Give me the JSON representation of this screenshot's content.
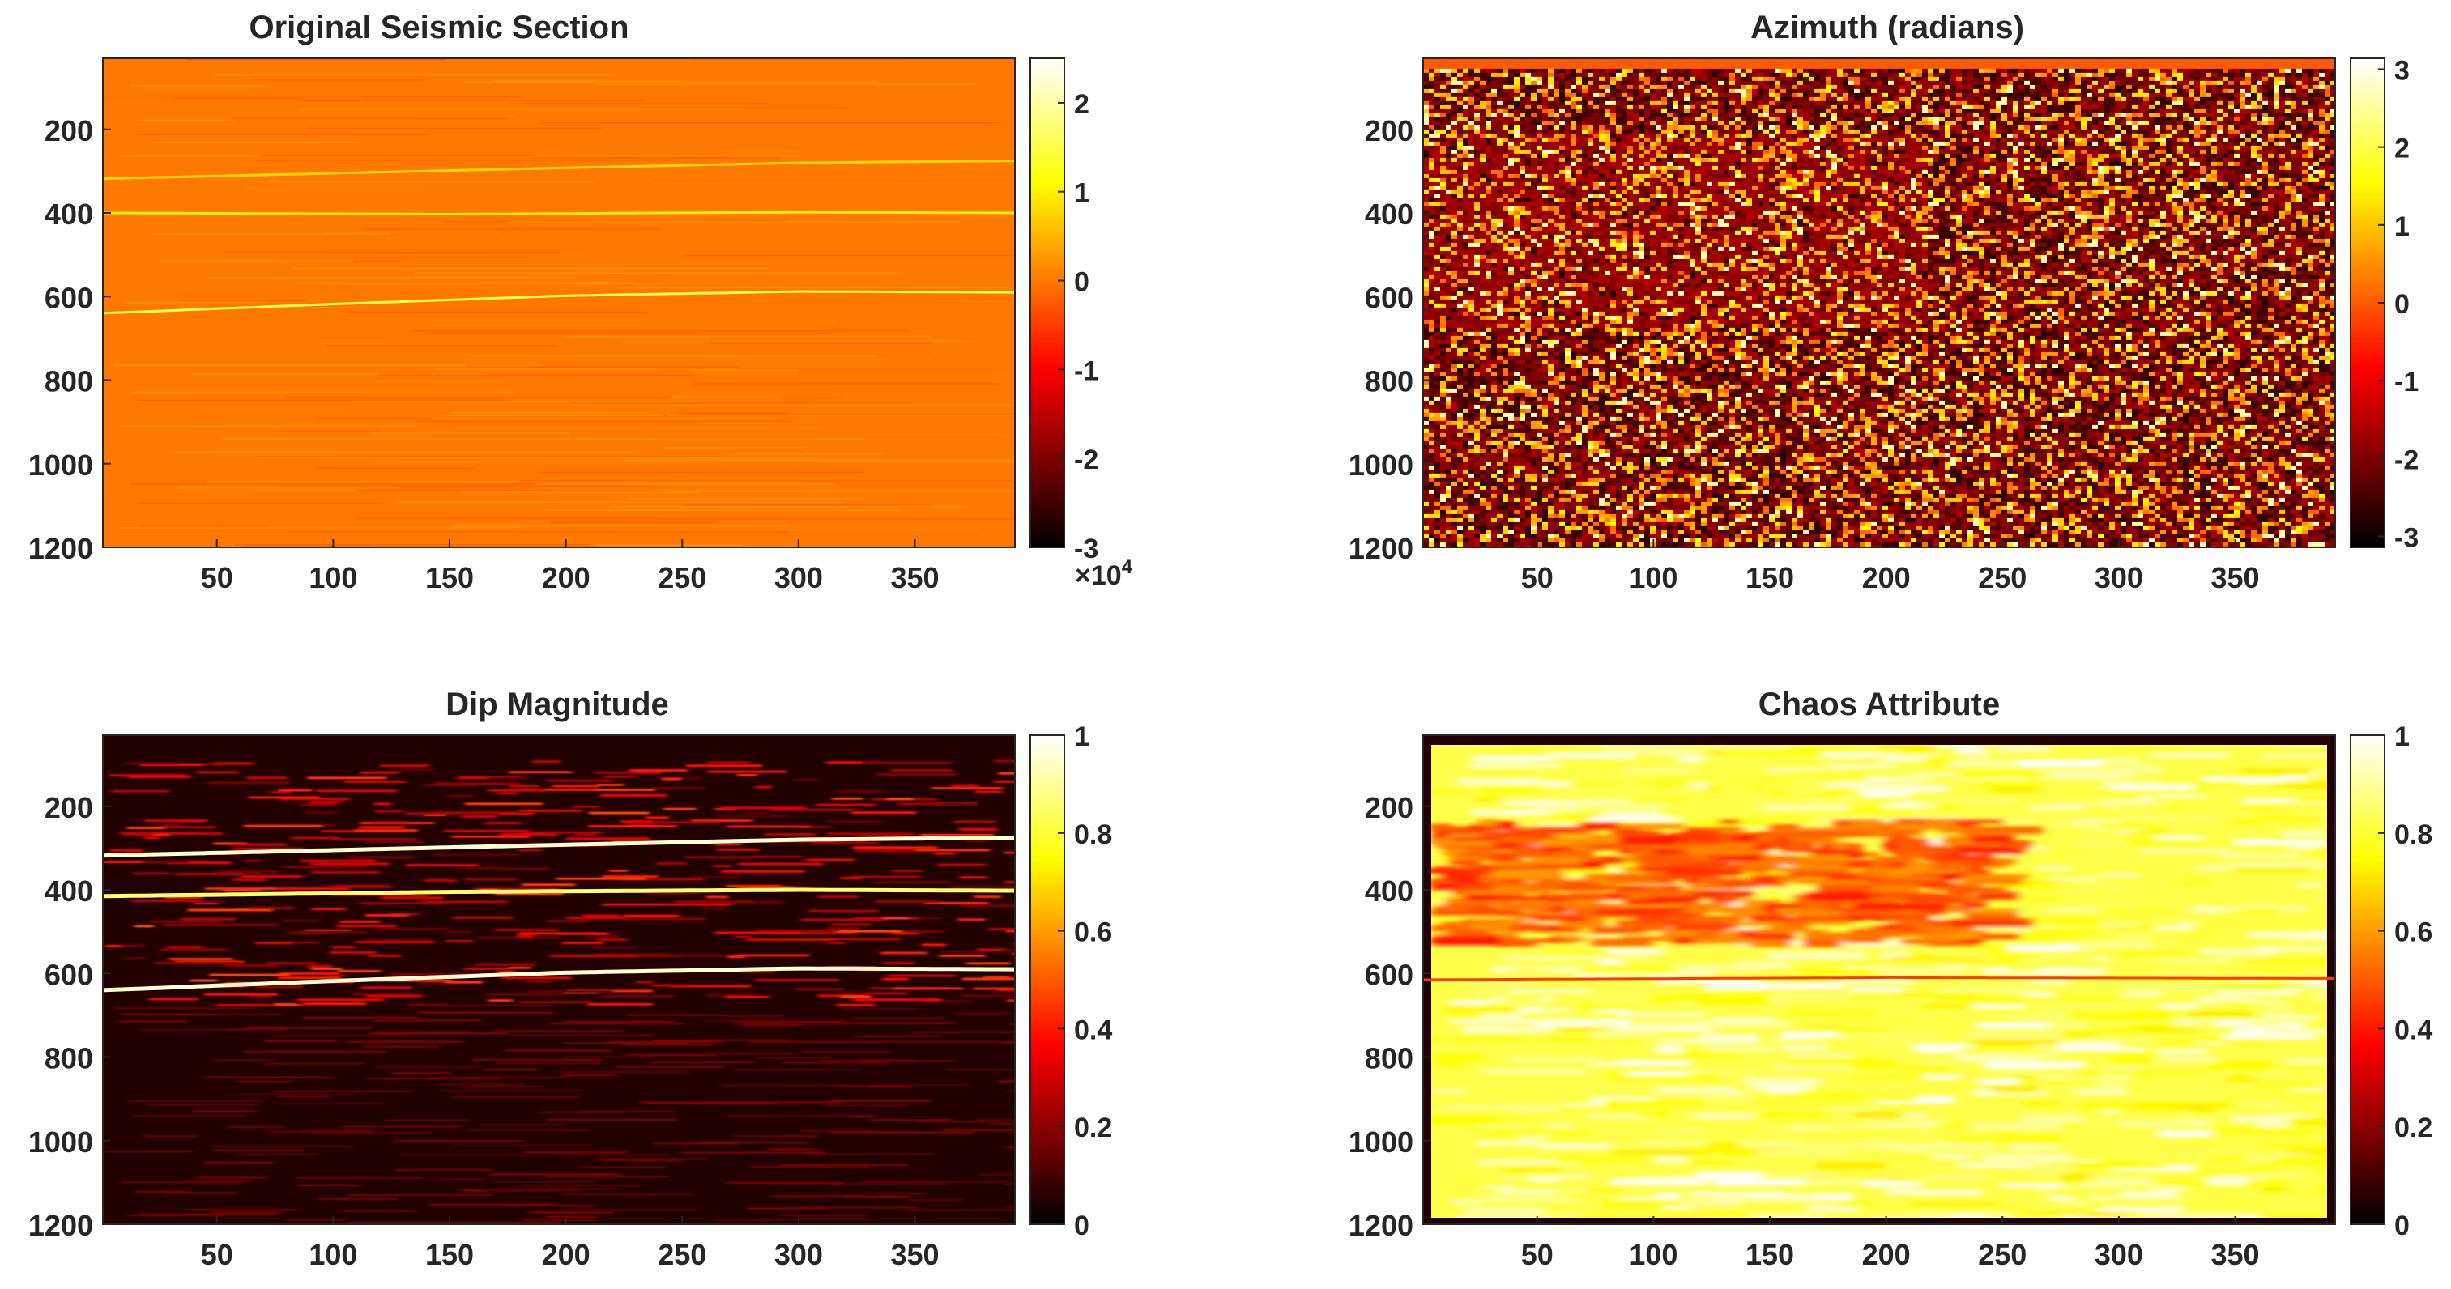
{
  "chart_data": [
    {
      "type": "heatmap",
      "title": "Original Seismic Section",
      "colormap": "hot",
      "xlim": [
        1,
        393
      ],
      "ylim": [
        1200,
        30
      ],
      "x_ticks": [
        "50",
        "100",
        "150",
        "200",
        "250",
        "300",
        "350"
      ],
      "y_ticks": [
        "200",
        "400",
        "600",
        "800",
        "1000",
        "1200"
      ],
      "colorbar": {
        "ticks": [
          "2",
          "1",
          "0",
          "-1",
          "-2",
          "-3"
        ],
        "range": [
          -3,
          2.5
        ],
        "exponent": "×10",
        "exponent_power": "4"
      },
      "background_value": 0,
      "features": [
        {
          "kind": "reflector",
          "x": [
            1,
            100,
            200,
            300,
            393
          ],
          "y": [
            640,
            618,
            598,
            588,
            590
          ],
          "value": 1.6
        },
        {
          "kind": "reflector",
          "x": [
            1,
            150,
            300,
            393
          ],
          "y": [
            400,
            403,
            398,
            400
          ],
          "value": 1.0
        },
        {
          "kind": "reflector",
          "x": [
            1,
            100,
            200,
            300,
            393
          ],
          "y": [
            318,
            305,
            292,
            280,
            275
          ],
          "value": 0.8
        }
      ]
    },
    {
      "type": "heatmap",
      "title": "Azimuth (radians)",
      "colormap": "hot",
      "xlim": [
        1,
        393
      ],
      "ylim": [
        1200,
        30
      ],
      "x_ticks": [
        "50",
        "100",
        "150",
        "200",
        "250",
        "300",
        "350"
      ],
      "y_ticks": [
        "200",
        "400",
        "600",
        "800",
        "1000",
        "1200"
      ],
      "colorbar": {
        "ticks": [
          "3",
          "2",
          "1",
          "0",
          "-1",
          "-2",
          "-3"
        ],
        "range": [
          -3.14,
          3.14
        ]
      },
      "top_band_value": 0
    },
    {
      "type": "heatmap",
      "title": "Dip Magnitude",
      "colormap": "hot",
      "xlim": [
        1,
        393
      ],
      "ylim": [
        1200,
        30
      ],
      "x_ticks": [
        "50",
        "100",
        "150",
        "200",
        "250",
        "300",
        "350"
      ],
      "y_ticks": [
        "200",
        "400",
        "600",
        "800",
        "1000",
        "1200"
      ],
      "colorbar": {
        "ticks": [
          "1",
          "0.8",
          "0.6",
          "0.4",
          "0.2",
          "0"
        ],
        "range": [
          0,
          1
        ]
      },
      "features": [
        {
          "kind": "reflector",
          "x": [
            1,
            100,
            200,
            300,
            393
          ],
          "y": [
            318,
            305,
            292,
            280,
            275
          ],
          "value": 0.95
        },
        {
          "kind": "reflector",
          "x": [
            1,
            150,
            300,
            393
          ],
          "y": [
            415,
            405,
            400,
            402
          ],
          "value": 0.85
        },
        {
          "kind": "reflector",
          "x": [
            1,
            100,
            200,
            300,
            393
          ],
          "y": [
            640,
            618,
            598,
            588,
            590
          ],
          "value": 0.95
        }
      ]
    },
    {
      "type": "heatmap",
      "title": "Chaos Attribute",
      "colormap": "hot",
      "xlim": [
        1,
        393
      ],
      "ylim": [
        1200,
        30
      ],
      "x_ticks": [
        "50",
        "100",
        "150",
        "200",
        "250",
        "300",
        "350"
      ],
      "y_ticks": [
        "200",
        "400",
        "600",
        "800",
        "1000",
        "1200"
      ],
      "colorbar": {
        "ticks": [
          "1",
          "0.8",
          "0.6",
          "0.4",
          "0.2",
          "0"
        ],
        "range": [
          0,
          1
        ]
      },
      "low_zone": {
        "x": [
          1,
          240
        ],
        "y": [
          230,
          520
        ],
        "value": 0.4
      },
      "features": [
        {
          "kind": "reflector",
          "x": [
            1,
            200,
            393
          ],
          "y": [
            615,
            610,
            612
          ],
          "value": 0.45
        }
      ]
    }
  ]
}
